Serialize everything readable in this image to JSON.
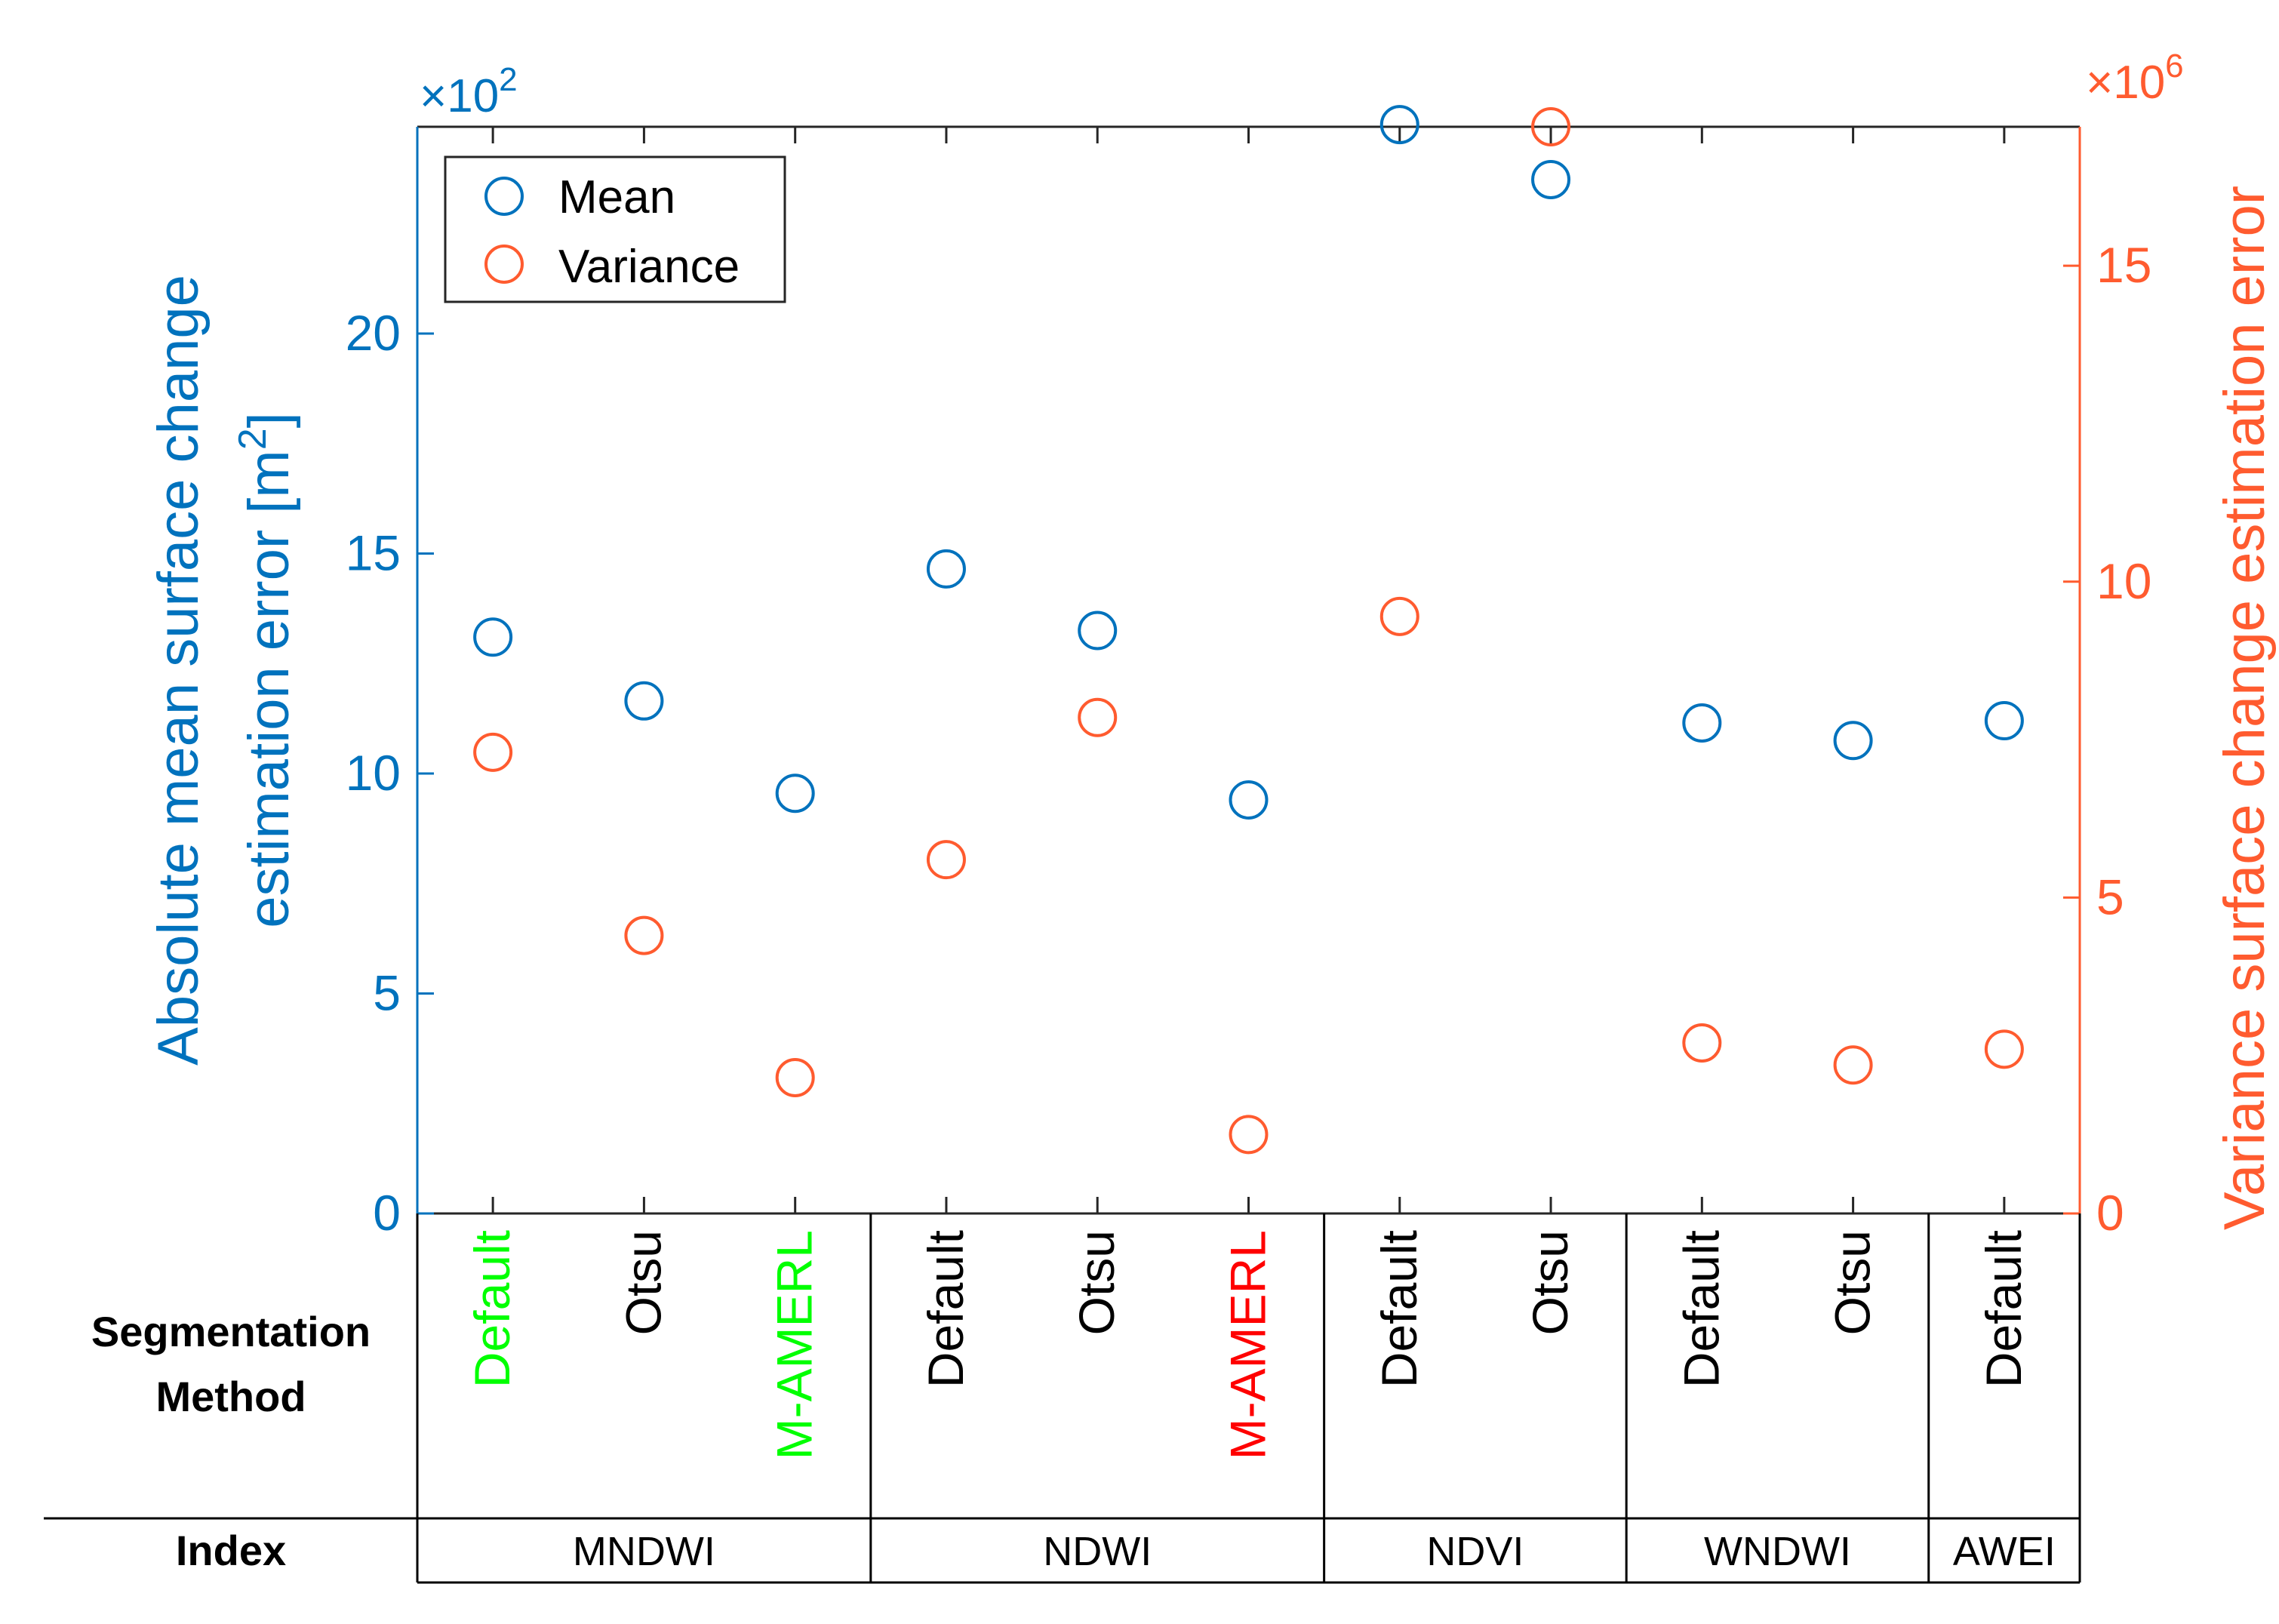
{
  "colors": {
    "mean": "#0072BD",
    "variance": "#FF5B2F",
    "green": "#00FF00",
    "red": "#FF0000",
    "text": "#000000"
  },
  "chart_data": {
    "type": "scatter",
    "title": "",
    "left_axis": {
      "label": "Absolute mean surface change",
      "label_line2": "estimation error [m",
      "label_sup": "2",
      "label_end": "]",
      "multiplier_base": "×10",
      "multiplier_exp": "2",
      "ylim": [
        0,
        24.7
      ],
      "ticks": [
        0,
        5,
        10,
        15,
        20
      ],
      "tick_labels": [
        "0",
        "5",
        "10",
        "15",
        "20"
      ]
    },
    "right_axis": {
      "label": "Variance surface change estimation error",
      "multiplier_base": "×10",
      "multiplier_exp": "6",
      "ylim": [
        0,
        17.2
      ],
      "ticks": [
        0,
        5,
        10,
        15
      ],
      "tick_labels": [
        "0",
        "5",
        "10",
        "15"
      ]
    },
    "categories": [
      "Default",
      "Otsu",
      "M-AMERL",
      "Default",
      "Otsu",
      "M-AMERL",
      "Default",
      "Otsu",
      "Default",
      "Otsu",
      "Default"
    ],
    "category_styles": [
      "green",
      "text",
      "green",
      "text",
      "text",
      "red",
      "text",
      "text",
      "text",
      "text",
      "text"
    ],
    "series": [
      {
        "name": "Mean",
        "axis": "left",
        "values": [
          13.1,
          11.65,
          9.55,
          14.65,
          13.25,
          9.4,
          24.75,
          23.5,
          11.15,
          10.75,
          11.2
        ]
      },
      {
        "name": "Variance",
        "axis": "right",
        "values": [
          7.3,
          4.4,
          2.15,
          5.6,
          7.85,
          1.25,
          9.45,
          17.2,
          2.7,
          2.35,
          2.6
        ]
      }
    ],
    "legend": {
      "position": "top-left",
      "entries": [
        "Mean",
        "Variance"
      ]
    },
    "table": {
      "row1_label": "Segmentation",
      "row1_label2": "Method",
      "row2_label": "Index",
      "groups": [
        {
          "name": "MNDWI",
          "count": 3
        },
        {
          "name": "NDWI",
          "count": 3
        },
        {
          "name": "NDVI",
          "count": 2
        },
        {
          "name": "WNDWI",
          "count": 2
        },
        {
          "name": "AWEI",
          "count": 1
        }
      ]
    }
  }
}
